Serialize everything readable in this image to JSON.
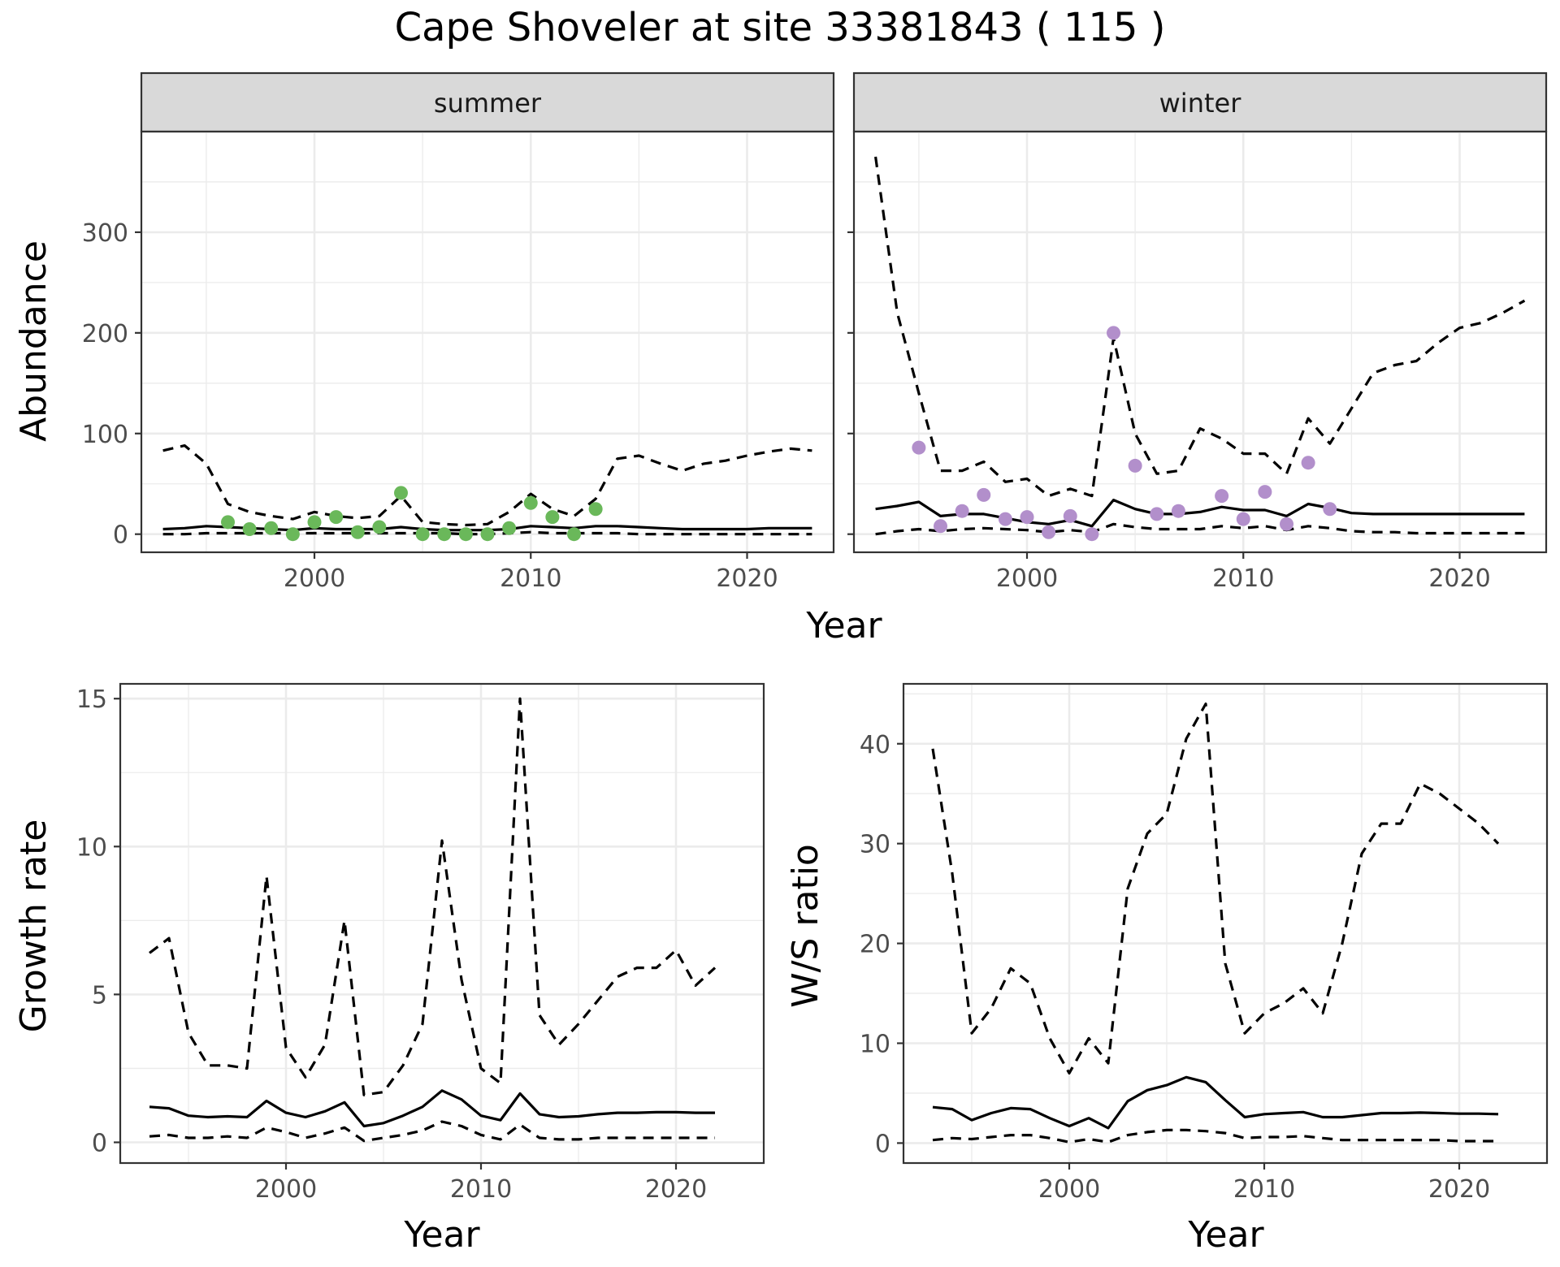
{
  "figure": {
    "title": "Cape Shoveler at site 33381843 ( 115 )"
  },
  "colors": {
    "summer_points": "#6ab85a",
    "winter_points": "#b28fcb",
    "lines": "#000000",
    "strip_fill": "#d9d9d9"
  },
  "chart_data": [
    {
      "id": "abundance-summer",
      "type": "line",
      "facet": "summer",
      "xlabel": "Year",
      "ylabel": "Abundance",
      "xlim": [
        1992,
        2024
      ],
      "ylim": [
        -18,
        400
      ],
      "xticks": [
        2000,
        2010,
        2020
      ],
      "yticks": [
        0,
        100,
        200,
        300
      ],
      "x": [
        1993,
        1994,
        1995,
        1996,
        1997,
        1998,
        1999,
        2000,
        2001,
        2002,
        2003,
        2004,
        2005,
        2006,
        2007,
        2008,
        2009,
        2010,
        2011,
        2012,
        2013,
        2014,
        2015,
        2016,
        2017,
        2018,
        2019,
        2020,
        2021,
        2022,
        2023
      ],
      "series": [
        {
          "role": "upper",
          "style": "dashed",
          "values": [
            83,
            88,
            70,
            30,
            22,
            18,
            15,
            22,
            18,
            16,
            18,
            38,
            12,
            10,
            9,
            10,
            22,
            40,
            25,
            18,
            35,
            75,
            78,
            70,
            63,
            70,
            73,
            78,
            82,
            85,
            83
          ]
        },
        {
          "role": "estimate",
          "style": "solid",
          "values": [
            5,
            6,
            8,
            7,
            6,
            5,
            4,
            6,
            5,
            5,
            5,
            7,
            5,
            4,
            4,
            4,
            5,
            8,
            7,
            6,
            8,
            8,
            7,
            6,
            5,
            5,
            5,
            5,
            6,
            6,
            6
          ]
        },
        {
          "role": "lower",
          "style": "dashed",
          "values": [
            0,
            0,
            1,
            1,
            1,
            1,
            1,
            1,
            1,
            1,
            1,
            1,
            1,
            1,
            0,
            0,
            1,
            2,
            1,
            1,
            1,
            1,
            0,
            0,
            0,
            0,
            0,
            0,
            0,
            0,
            0
          ]
        }
      ],
      "points": [
        {
          "x": 1996,
          "y": 12
        },
        {
          "x": 1997,
          "y": 5
        },
        {
          "x": 1998,
          "y": 6
        },
        {
          "x": 1999,
          "y": 0
        },
        {
          "x": 2000,
          "y": 12
        },
        {
          "x": 2001,
          "y": 17
        },
        {
          "x": 2002,
          "y": 2
        },
        {
          "x": 2003,
          "y": 7
        },
        {
          "x": 2004,
          "y": 41
        },
        {
          "x": 2005,
          "y": 0
        },
        {
          "x": 2006,
          "y": 0
        },
        {
          "x": 2007,
          "y": 0
        },
        {
          "x": 2008,
          "y": 0
        },
        {
          "x": 2009,
          "y": 6
        },
        {
          "x": 2010,
          "y": 31
        },
        {
          "x": 2011,
          "y": 17
        },
        {
          "x": 2012,
          "y": 0
        },
        {
          "x": 2013,
          "y": 25
        }
      ]
    },
    {
      "id": "abundance-winter",
      "type": "line",
      "facet": "winter",
      "xlabel": "Year",
      "ylabel": "Abundance",
      "xlim": [
        1992,
        2024
      ],
      "ylim": [
        -18,
        400
      ],
      "xticks": [
        2000,
        2010,
        2020
      ],
      "yticks": [
        0,
        100,
        200,
        300
      ],
      "x": [
        1993,
        1994,
        1995,
        1996,
        1997,
        1998,
        1999,
        2000,
        2001,
        2002,
        2003,
        2004,
        2005,
        2006,
        2007,
        2008,
        2009,
        2010,
        2011,
        2012,
        2013,
        2014,
        2015,
        2016,
        2017,
        2018,
        2019,
        2020,
        2021,
        2022,
        2023
      ],
      "series": [
        {
          "role": "upper",
          "style": "dashed",
          "values": [
            375,
            220,
            140,
            63,
            63,
            72,
            52,
            55,
            38,
            45,
            38,
            195,
            100,
            60,
            63,
            105,
            95,
            80,
            80,
            60,
            115,
            90,
            125,
            160,
            168,
            172,
            190,
            205,
            210,
            220,
            232
          ]
        },
        {
          "role": "estimate",
          "style": "solid",
          "values": [
            25,
            28,
            32,
            18,
            20,
            20,
            16,
            12,
            10,
            14,
            8,
            34,
            25,
            20,
            20,
            22,
            27,
            24,
            24,
            18,
            30,
            26,
            21,
            20,
            20,
            20,
            20,
            20,
            20,
            20,
            20
          ]
        },
        {
          "role": "lower",
          "style": "dashed",
          "values": [
            0,
            3,
            5,
            3,
            5,
            6,
            5,
            4,
            2,
            4,
            2,
            10,
            7,
            5,
            5,
            5,
            8,
            6,
            8,
            4,
            8,
            6,
            3,
            2,
            2,
            1,
            1,
            1,
            1,
            1,
            1
          ]
        }
      ],
      "points": [
        {
          "x": 1995,
          "y": 86
        },
        {
          "x": 1996,
          "y": 8
        },
        {
          "x": 1997,
          "y": 23
        },
        {
          "x": 1998,
          "y": 39
        },
        {
          "x": 1999,
          "y": 15
        },
        {
          "x": 2000,
          "y": 17
        },
        {
          "x": 2001,
          "y": 2
        },
        {
          "x": 2002,
          "y": 18
        },
        {
          "x": 2003,
          "y": 0
        },
        {
          "x": 2004,
          "y": 200
        },
        {
          "x": 2005,
          "y": 68
        },
        {
          "x": 2006,
          "y": 20
        },
        {
          "x": 2007,
          "y": 23
        },
        {
          "x": 2009,
          "y": 38
        },
        {
          "x": 2010,
          "y": 15
        },
        {
          "x": 2011,
          "y": 42
        },
        {
          "x": 2012,
          "y": 10
        },
        {
          "x": 2013,
          "y": 71
        },
        {
          "x": 2014,
          "y": 25
        }
      ]
    },
    {
      "id": "growth-rate",
      "type": "line",
      "xlabel": "Year",
      "ylabel": "Growth rate",
      "xlim": [
        1991.5,
        2024.5
      ],
      "ylim": [
        -0.7,
        15.5
      ],
      "xticks": [
        2000,
        2010,
        2020
      ],
      "yticks": [
        0,
        5,
        10,
        15
      ],
      "x": [
        1993,
        1994,
        1995,
        1996,
        1997,
        1998,
        1999,
        2000,
        2001,
        2002,
        2003,
        2004,
        2005,
        2006,
        2007,
        2008,
        2009,
        2010,
        2011,
        2012,
        2013,
        2014,
        2015,
        2016,
        2017,
        2018,
        2019,
        2020,
        2021,
        2022
      ],
      "series": [
        {
          "role": "upper",
          "style": "dashed",
          "values": [
            6.4,
            6.9,
            3.7,
            2.6,
            2.6,
            2.5,
            9.0,
            3.2,
            2.2,
            3.3,
            7.5,
            1.6,
            1.7,
            2.6,
            4.0,
            10.2,
            5.5,
            2.5,
            2.0,
            15.0,
            4.3,
            3.3,
            4.0,
            4.8,
            5.6,
            5.9,
            5.9,
            6.5,
            5.3,
            5.9
          ]
        },
        {
          "role": "estimate",
          "style": "solid",
          "values": [
            1.2,
            1.15,
            0.9,
            0.85,
            0.88,
            0.85,
            1.4,
            1.0,
            0.85,
            1.05,
            1.35,
            0.55,
            0.65,
            0.9,
            1.2,
            1.75,
            1.45,
            0.9,
            0.75,
            1.65,
            0.95,
            0.85,
            0.88,
            0.95,
            1.0,
            1.0,
            1.02,
            1.02,
            1.0,
            1.0
          ]
        },
        {
          "role": "lower",
          "style": "dashed",
          "values": [
            0.2,
            0.25,
            0.15,
            0.15,
            0.2,
            0.15,
            0.5,
            0.35,
            0.15,
            0.3,
            0.5,
            0.05,
            0.15,
            0.25,
            0.4,
            0.7,
            0.55,
            0.25,
            0.1,
            0.6,
            0.15,
            0.1,
            0.1,
            0.15,
            0.15,
            0.15,
            0.15,
            0.15,
            0.15,
            0.15
          ]
        }
      ]
    },
    {
      "id": "ws-ratio",
      "type": "line",
      "xlabel": "Year",
      "ylabel": "W/S ratio",
      "xlim": [
        1991.5,
        2024.5
      ],
      "ylim": [
        -2,
        46
      ],
      "xticks": [
        2000,
        2010,
        2020
      ],
      "yticks": [
        0,
        10,
        20,
        30,
        40
      ],
      "x": [
        1993,
        1994,
        1995,
        1996,
        1997,
        1998,
        1999,
        2000,
        2001,
        2002,
        2003,
        2004,
        2005,
        2006,
        2007,
        2008,
        2009,
        2010,
        2011,
        2012,
        2013,
        2014,
        2015,
        2016,
        2017,
        2018,
        2019,
        2020,
        2021,
        2022
      ],
      "series": [
        {
          "role": "upper",
          "style": "dashed",
          "values": [
            39.5,
            27.0,
            11.0,
            13.5,
            17.5,
            16.0,
            10.5,
            7.0,
            10.5,
            8.0,
            25.5,
            31.0,
            33.0,
            40.5,
            44.0,
            18.0,
            11.0,
            13.0,
            14.0,
            15.5,
            13.0,
            20.0,
            29.0,
            32.0,
            32.0,
            36.0,
            35.0,
            33.5,
            32.0,
            30.0
          ]
        },
        {
          "role": "estimate",
          "style": "solid",
          "values": [
            3.6,
            3.4,
            2.3,
            3.0,
            3.5,
            3.4,
            2.5,
            1.7,
            2.5,
            1.5,
            4.2,
            5.3,
            5.8,
            6.6,
            6.1,
            4.3,
            2.6,
            2.9,
            3.0,
            3.1,
            2.6,
            2.6,
            2.8,
            3.0,
            3.0,
            3.05,
            3.0,
            2.95,
            2.95,
            2.9
          ]
        },
        {
          "role": "lower",
          "style": "dashed",
          "values": [
            0.3,
            0.5,
            0.4,
            0.6,
            0.8,
            0.8,
            0.5,
            0.1,
            0.4,
            0.1,
            0.8,
            1.1,
            1.3,
            1.3,
            1.2,
            1.0,
            0.5,
            0.6,
            0.6,
            0.7,
            0.5,
            0.3,
            0.3,
            0.3,
            0.3,
            0.3,
            0.3,
            0.2,
            0.2,
            0.2
          ]
        }
      ]
    }
  ]
}
